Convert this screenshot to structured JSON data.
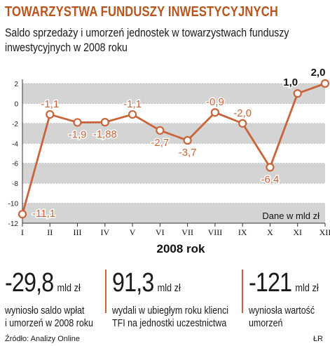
{
  "header": {
    "title": "TOWARZYSTWA FUNDUSZY INWESTYCYJNYCH",
    "subtitle": "Saldo sprzedaży i umorzeń jednostek w towarzystwach funduszy inwestycyjnych w 2008 roku"
  },
  "chart_data": {
    "type": "line",
    "categories": [
      "I",
      "II",
      "III",
      "IV",
      "V",
      "VI",
      "VII",
      "VIII",
      "IX",
      "X",
      "XI",
      "XII"
    ],
    "values": [
      -11.1,
      -1.1,
      -1.9,
      -1.88,
      -1.1,
      -2.7,
      -3.7,
      -0.9,
      -2.0,
      -6.4,
      1.0,
      2.0
    ],
    "data_labels": [
      "-11,1",
      "-1,1",
      "-1,9",
      "-1,88",
      "-1,1",
      "-2,7",
      "-3,7",
      "-0,9",
      "-2,0",
      "-6,4",
      "1,0",
      "2,0"
    ],
    "yticks": [
      "2",
      "0",
      "-2",
      "-4",
      "-6",
      "-8",
      "-10",
      "-12"
    ],
    "ylim": [
      -12,
      2
    ],
    "xlabel": "2008 rok",
    "unit_note": "Dane w mld zł",
    "grid": true,
    "line_color": "#c9643a"
  },
  "stats": [
    {
      "value": "-29,8",
      "unit": "mld zł",
      "line1": "wyniosło saldo wpłat",
      "line2": "i umorzeń w 2008 roku"
    },
    {
      "value": "91,3",
      "unit": "mld zł",
      "line1": "wydali w ubiegłym roku klienci",
      "line2": "TFI na jednostki uczestnictwa"
    },
    {
      "value": "-121",
      "unit": "mld zł",
      "line1": "wyniosła wartość",
      "line2": "umorzeń"
    }
  ],
  "footer": {
    "source": "Źródło: Analizy Online",
    "credit": "ŁR"
  },
  "colors": {
    "accent": "#b8551c",
    "line": "#c9643a",
    "band": "#d4d4d4"
  }
}
